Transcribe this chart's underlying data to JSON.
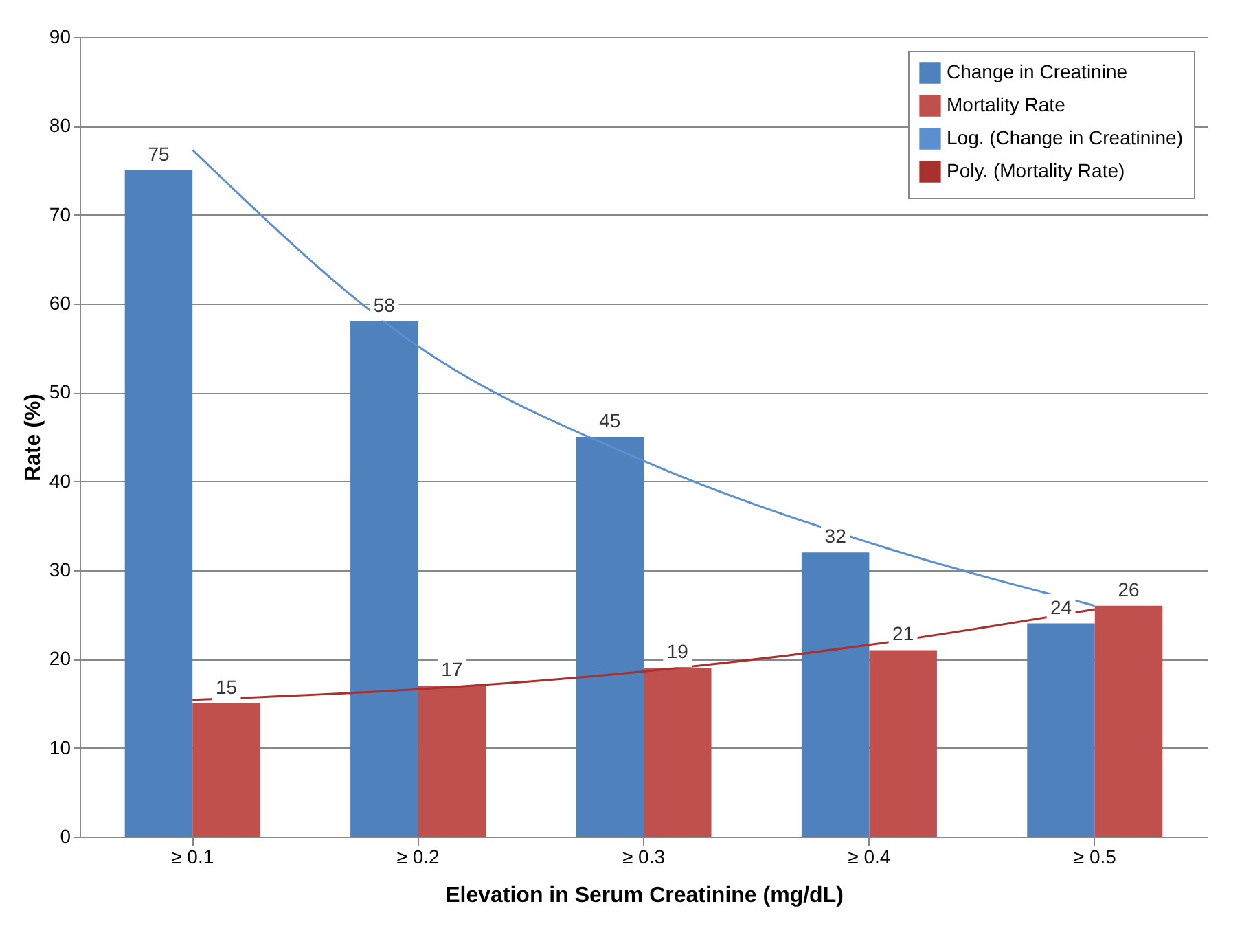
{
  "chart_data": {
    "type": "bar",
    "xlabel": "Elevation in Serum Creatinine (mg/dL)",
    "ylabel": "Rate (%)",
    "categories": [
      "≥ 0.1",
      "≥ 0.2",
      "≥ 0.3",
      "≥ 0.4",
      "≥ 0.5"
    ],
    "series": [
      {
        "name": "Change in Creatinine",
        "color": "#4f81bd",
        "values": [
          75,
          58,
          45,
          32,
          24
        ],
        "value_labels": [
          "75",
          "58",
          "45",
          "32",
          "24"
        ]
      },
      {
        "name": "Mortality Rate",
        "color": "#c0504d",
        "values": [
          15,
          17,
          19,
          21,
          26
        ],
        "value_labels": [
          "15",
          "17",
          "19",
          "21",
          "26"
        ]
      },
      {
        "name": "Log. (Change in Creatinine)",
        "type": "line",
        "color": "#5b8fd0",
        "x": [
          "≥ 0.1",
          "≥ 0.2",
          "≥ 0.3",
          "≥ 0.4",
          "≥ 0.5"
        ],
        "values": [
          77.3,
          55.2,
          42.3,
          33.1,
          26.0
        ]
      },
      {
        "name": "Poly. (Mortality Rate)",
        "type": "line",
        "color": "#a8302d",
        "x": [
          "≥ 0.1",
          "≥ 0.2",
          "≥ 0.3",
          "≥ 0.4",
          "≥ 0.5"
        ],
        "values": [
          15.4,
          16.6,
          18.6,
          21.6,
          25.6
        ]
      }
    ],
    "ylim": [
      0,
      90
    ],
    "yticks": [
      0,
      10,
      20,
      30,
      40,
      50,
      60,
      70,
      80,
      90
    ],
    "grid": "y",
    "legend": "top right"
  }
}
